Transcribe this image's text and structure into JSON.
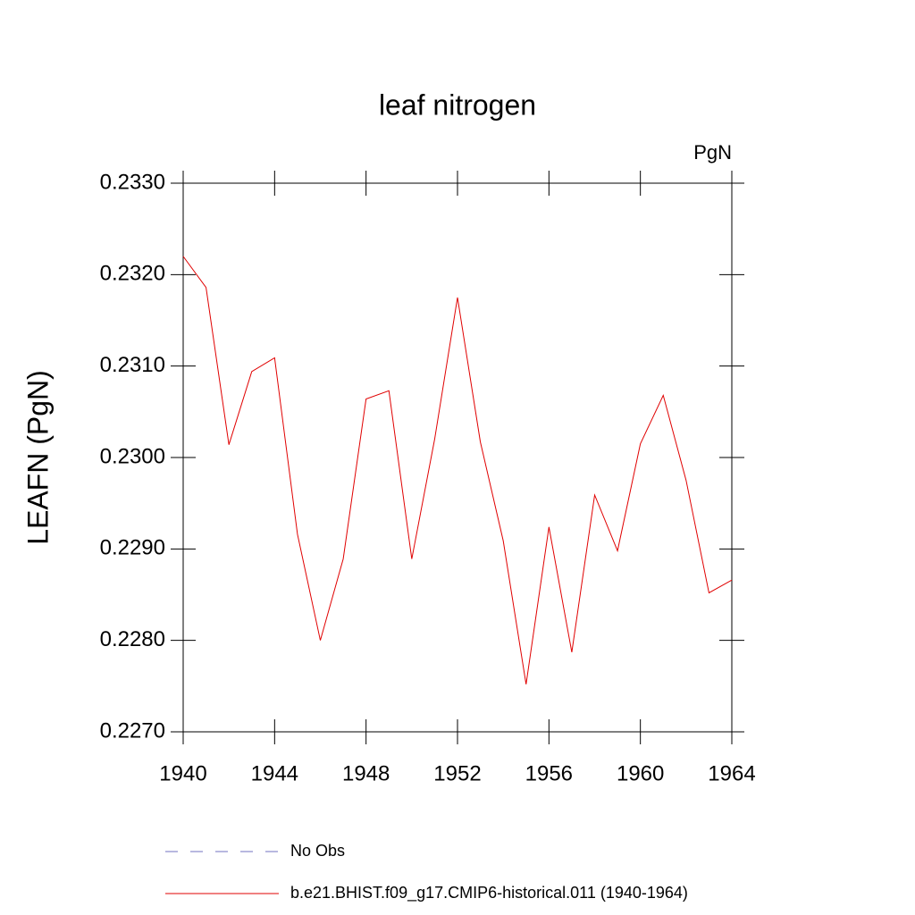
{
  "chart_data": {
    "type": "line",
    "title": "leaf nitrogen",
    "units": "PgN",
    "ylabel": "LEAFN  (PgN)",
    "x": [
      1940,
      1941,
      1942,
      1943,
      1944,
      1945,
      1946,
      1947,
      1948,
      1949,
      1950,
      1951,
      1952,
      1953,
      1954,
      1955,
      1956,
      1957,
      1958,
      1959,
      1960,
      1961,
      1962,
      1963,
      1964
    ],
    "series": [
      {
        "name": "No Obs",
        "color": "#7070c0",
        "dashed": true,
        "values": [
          null,
          null,
          null,
          null,
          null,
          null,
          null,
          null,
          null,
          null,
          null,
          null,
          null,
          null,
          null,
          null,
          null,
          null,
          null,
          null,
          null,
          null,
          null,
          null,
          null
        ]
      },
      {
        "name": "b.e21.BHIST.f09_g17.CMIP6-historical.011 (1940-1964)",
        "color": "#e00000",
        "dashed": false,
        "values": [
          0.2322,
          0.23186,
          0.23014,
          0.23094,
          0.23109,
          0.22916,
          0.228,
          0.22889,
          0.23064,
          0.23073,
          0.22889,
          0.2302,
          0.23175,
          0.23017,
          0.22909,
          0.22752,
          0.22924,
          0.22787,
          0.22959,
          0.22898,
          0.23015,
          0.23068,
          0.22975,
          0.22852,
          0.22866
        ]
      }
    ],
    "xlim": [
      1940,
      1964
    ],
    "xticks": [
      1940,
      1944,
      1948,
      1952,
      1956,
      1960,
      1964
    ],
    "ylim": [
      0.227,
      0.233
    ],
    "yticks": [
      {
        "value": 0.227,
        "label": "0.2270"
      },
      {
        "value": 0.228,
        "label": "0.2280"
      },
      {
        "value": 0.229,
        "label": "0.2290"
      },
      {
        "value": 0.23,
        "label": "0.2300"
      },
      {
        "value": 0.231,
        "label": "0.2310"
      },
      {
        "value": 0.232,
        "label": "0.2320"
      },
      {
        "value": 0.233,
        "label": "0.2330"
      }
    ]
  }
}
